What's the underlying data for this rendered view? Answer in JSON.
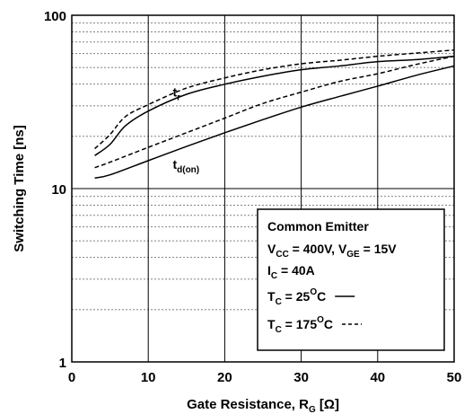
{
  "chart_data": {
    "type": "line",
    "xlabel": "Gate Resistance, R",
    "xlabel_sub": "G",
    "xlabel_unit": " [Ω]",
    "ylabel": "Switching Time [ns]",
    "xlim": [
      0,
      50
    ],
    "ylim": [
      1,
      100
    ],
    "yscale": "log",
    "grid": true,
    "x_ticks": [
      0,
      10,
      20,
      30,
      40,
      50
    ],
    "y_ticks": [
      1,
      10,
      100
    ],
    "series": [
      {
        "name": "t_r",
        "temperature": "25C",
        "style": "solid",
        "x": [
          3,
          5,
          7,
          10,
          15,
          20,
          25,
          30,
          35,
          40,
          45,
          50
        ],
        "y": [
          15.5,
          18,
          23,
          28,
          35,
          40,
          44.5,
          48.5,
          51,
          54,
          55.5,
          58
        ]
      },
      {
        "name": "t_r",
        "temperature": "175C",
        "style": "dashed",
        "x": [
          3,
          5,
          7,
          10,
          15,
          20,
          25,
          30,
          35,
          40,
          45,
          50
        ],
        "y": [
          17,
          20.5,
          26,
          30.5,
          38,
          43.5,
          48.5,
          52.5,
          55,
          58,
          60.5,
          63
        ]
      },
      {
        "name": "t_d(on)",
        "temperature": "25C",
        "style": "solid",
        "x": [
          3,
          5,
          10,
          15,
          20,
          25,
          30,
          35,
          40,
          45,
          50
        ],
        "y": [
          11.5,
          12,
          14.5,
          17.5,
          21,
          25,
          29.5,
          34,
          39,
          45,
          51
        ]
      },
      {
        "name": "t_d(on)",
        "temperature": "175C",
        "style": "dashed",
        "x": [
          3,
          5,
          10,
          15,
          20,
          25,
          30,
          35,
          40,
          45,
          50
        ],
        "y": [
          13.2,
          14.2,
          17.3,
          21,
          25.5,
          31,
          36,
          41.5,
          46,
          52,
          58
        ]
      }
    ],
    "curve_labels": [
      {
        "base": "t",
        "sub": "r",
        "x": 13.2,
        "y": 34
      },
      {
        "base": "t",
        "sub": "d(on)",
        "x": 13.2,
        "y": 13
      }
    ],
    "legend": {
      "position": "bottom-right",
      "lines": [
        {
          "parts": [
            {
              "t": "Common Emitter"
            }
          ]
        },
        {
          "parts": [
            {
              "t": "V"
            },
            {
              "t": "CC",
              "sub": true
            },
            {
              "t": " = 400V, V"
            },
            {
              "t": "GE",
              "sub": true
            },
            {
              "t": " = 15V"
            }
          ]
        },
        {
          "parts": [
            {
              "t": "I"
            },
            {
              "t": "C",
              "sub": true
            },
            {
              "t": " = 40A"
            }
          ]
        },
        {
          "parts": [
            {
              "t": "T"
            },
            {
              "t": "C",
              "sub": true
            },
            {
              "t": " = 25"
            },
            {
              "t": "O",
              "sup": true
            },
            {
              "t": "C"
            }
          ],
          "style": "solid"
        },
        {
          "parts": [
            {
              "t": "T"
            },
            {
              "t": "C",
              "sub": true
            },
            {
              "t": " = 175"
            },
            {
              "t": "O",
              "sup": true
            },
            {
              "t": "C"
            }
          ],
          "style": "dashed"
        }
      ]
    }
  }
}
